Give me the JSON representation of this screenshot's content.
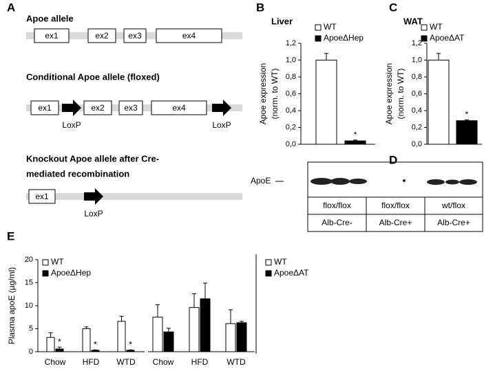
{
  "panel_labels": [
    "A",
    "B",
    "C",
    "D",
    "E"
  ],
  "diagram": {
    "alleles": [
      {
        "title": [
          "Apoe allele"
        ],
        "exons": [
          "ex1",
          "ex2",
          "ex3",
          "ex4"
        ],
        "loxp": []
      },
      {
        "title": [
          "Conditional Apoe allele (floxed)"
        ],
        "exons": [
          "ex1",
          "ex2",
          "ex3",
          "ex4"
        ],
        "loxp": [
          "LoxP",
          "LoxP"
        ]
      },
      {
        "title": [
          "Knockout Apoe allele after Cre-",
          "mediated recombination"
        ],
        "exons": [
          "ex1"
        ],
        "loxp": [
          "LoxP"
        ]
      }
    ]
  },
  "blot": {
    "band_label": "ApoE",
    "rows": [
      [
        "flox/flox",
        "flox/flox",
        "wt/flox"
      ],
      [
        "Alb-Cre-",
        "Alb-Cre+",
        "Alb-Cre+"
      ]
    ]
  },
  "chart_data": [
    {
      "type": "bar",
      "title": "Liver",
      "y_label": [
        "Apoe expression",
        "(norm. to WT)"
      ],
      "ylim": [
        0,
        1.2
      ],
      "yticks": [
        {
          "value": 0,
          "label": "0,0"
        },
        {
          "value": 0.2,
          "label": "0,2"
        },
        {
          "value": 0.4,
          "label": "0,4"
        },
        {
          "value": 0.6,
          "label": "0,6"
        },
        {
          "value": 0.8,
          "label": "0,8"
        },
        {
          "value": 1.0,
          "label": "1,0"
        },
        {
          "value": 1.2,
          "label": "1,2"
        }
      ],
      "series": [
        {
          "name": "WT",
          "color": "#ffffff",
          "values": [
            1.0
          ],
          "errors": [
            0.08
          ]
        },
        {
          "name": "ApoeΔHep",
          "color": "#000000",
          "values": [
            0.04
          ],
          "errors": [
            0.01
          ],
          "significance": [
            "*"
          ]
        }
      ]
    },
    {
      "type": "bar",
      "title": "WAT",
      "y_label": [
        "Apoe expression",
        "(norm. to WT)"
      ],
      "ylim": [
        0,
        1.2
      ],
      "yticks": [
        {
          "value": 0,
          "label": "0,0"
        },
        {
          "value": 0.2,
          "label": "0,2"
        },
        {
          "value": 0.4,
          "label": "0,4"
        },
        {
          "value": 0.6,
          "label": "0,6"
        },
        {
          "value": 0.8,
          "label": "0,8"
        },
        {
          "value": 1.0,
          "label": "1,0"
        },
        {
          "value": 1.2,
          "label": "1,2"
        }
      ],
      "series": [
        {
          "name": "WT",
          "color": "#ffffff",
          "values": [
            1.0
          ],
          "errors": [
            0.08
          ]
        },
        {
          "name": "ApoeΔAT",
          "color": "#000000",
          "values": [
            0.28
          ],
          "errors": [
            0.01
          ],
          "significance": [
            "*"
          ]
        }
      ]
    },
    {
      "type": "bar",
      "y_label": [
        "Plasma apoE (µg/ml)"
      ],
      "ylim": [
        0,
        20
      ],
      "yticks": [
        0,
        5,
        10,
        15,
        20
      ],
      "categories": [
        "Chow",
        "HFD",
        "WTD"
      ],
      "series": [
        {
          "name": "WT",
          "color": "#ffffff",
          "values": [
            3.1,
            5.0,
            6.6
          ],
          "errors": [
            1.0,
            0.4,
            1.1
          ]
        },
        {
          "name": "ApoeΔHep",
          "color": "#000000",
          "values": [
            0.6,
            0.3,
            0.3
          ],
          "errors": [
            0.4,
            0.1,
            0.1
          ],
          "significance": [
            "*",
            "*",
            "*"
          ]
        }
      ]
    },
    {
      "type": "bar",
      "ylim": [
        0,
        20
      ],
      "categories": [
        "Chow",
        "HFD",
        "WTD"
      ],
      "series": [
        {
          "name": "WT",
          "color": "#ffffff",
          "values": [
            7.5,
            9.6,
            6.1
          ],
          "errors": [
            2.7,
            3.0,
            3.0
          ]
        },
        {
          "name": "ApoeΔAT",
          "color": "#000000",
          "values": [
            4.3,
            11.5,
            6.3
          ],
          "errors": [
            0.8,
            3.4,
            0.3
          ]
        }
      ]
    }
  ]
}
